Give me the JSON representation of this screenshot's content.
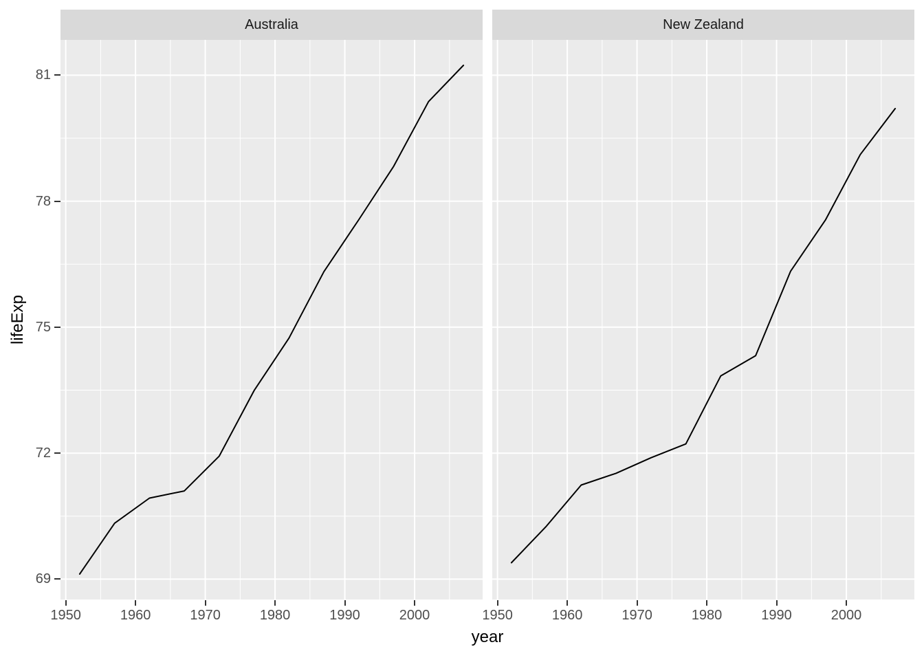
{
  "chart_data": {
    "type": "line",
    "title": "",
    "xlabel": "year",
    "ylabel": "lifeExp",
    "grid": "on",
    "legend": "none",
    "facets": [
      {
        "label": "Australia",
        "x": [
          1952,
          1957,
          1962,
          1967,
          1972,
          1977,
          1982,
          1987,
          1992,
          1997,
          2002,
          2007
        ],
        "values": [
          69.12,
          70.33,
          70.93,
          71.1,
          71.93,
          73.49,
          74.74,
          76.32,
          77.56,
          78.83,
          80.37,
          81.235
        ]
      },
      {
        "label": "New Zealand",
        "x": [
          1952,
          1957,
          1962,
          1967,
          1972,
          1977,
          1982,
          1987,
          1992,
          1997,
          2002,
          2007
        ],
        "values": [
          69.39,
          70.26,
          71.24,
          71.52,
          71.89,
          72.22,
          73.84,
          74.32,
          76.33,
          77.55,
          79.11,
          80.204
        ]
      }
    ],
    "x_ticks": [
      1950,
      1960,
      1970,
      1980,
      1990,
      2000
    ],
    "x_minor_ticks": [
      1955,
      1965,
      1975,
      1985,
      1995,
      2005
    ],
    "y_ticks": [
      69,
      72,
      75,
      78,
      81
    ],
    "y_minor_ticks": [
      70.5,
      73.5,
      76.5,
      79.5
    ],
    "xlim": [
      1949.25,
      2009.75
    ],
    "ylim": [
      68.515,
      81.84
    ],
    "colors": {
      "figure_bg": "#FFFFFF",
      "panel_bg": "#EBEBEB",
      "strip_bg": "#D9D9D9",
      "grid_line": "#FFFFFF",
      "data_line": "#000000",
      "tick_label": "#4D4D4D",
      "tick_mark": "#333333",
      "axis_title": "#000000",
      "strip_text": "#1A1A1A"
    }
  }
}
